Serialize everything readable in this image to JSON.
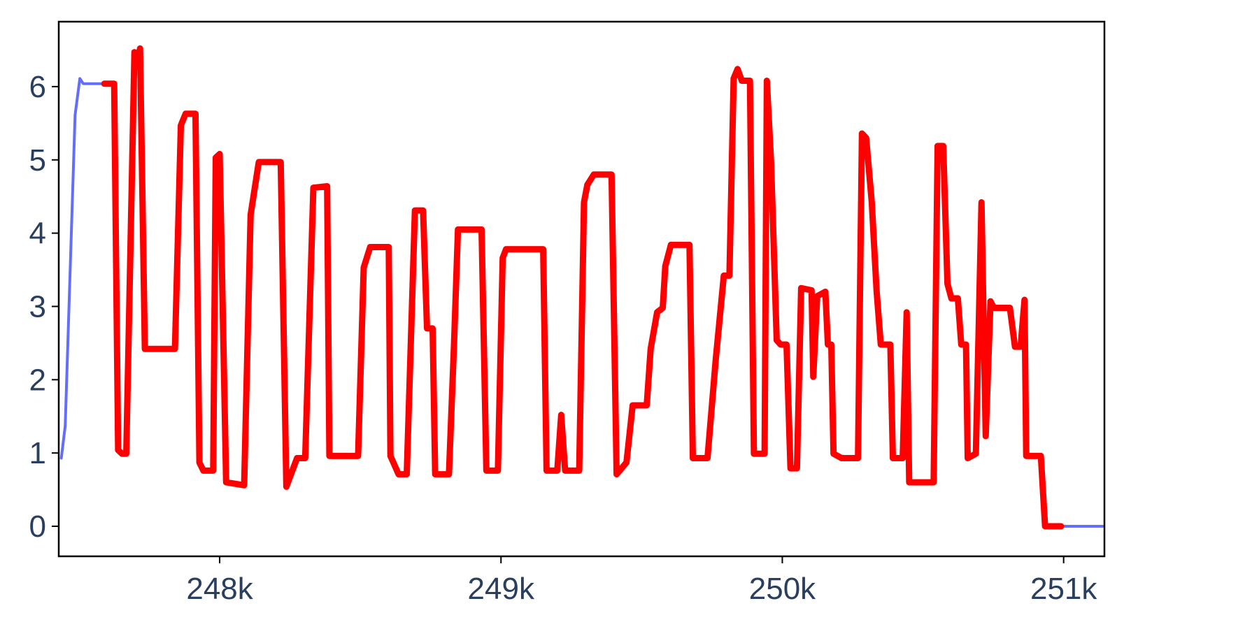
{
  "chart_data": {
    "type": "line",
    "xlim": [
      247428,
      251145
    ],
    "ylim": [
      -0.41,
      6.886
    ],
    "xticks": [
      {
        "value": 248000,
        "label": "248k"
      },
      {
        "value": 249000,
        "label": "249k"
      },
      {
        "value": 250000,
        "label": "250k"
      },
      {
        "value": 251000,
        "label": "251k"
      }
    ],
    "yticks": [
      0,
      1,
      2,
      3,
      4,
      5,
      6
    ],
    "grid": false,
    "series": [
      {
        "color": "#636efa",
        "width": 4,
        "x": [
          247437,
          247451,
          247486,
          247503,
          247515,
          247590,
          247625,
          247639,
          247653,
          247668,
          247697,
          247711,
          247717,
          247734,
          247841,
          247862,
          247879,
          247914,
          247928,
          247942,
          247977,
          247986,
          248000,
          248023,
          248087,
          248110,
          248139,
          248217,
          248237,
          248275,
          248304,
          248333,
          248382,
          248390,
          248492,
          248512,
          248535,
          248601,
          248607,
          248636,
          248665,
          248694,
          248723,
          248737,
          248757,
          248766,
          248815,
          248833,
          248847,
          248931,
          248948,
          248989,
          249006,
          249018,
          249150,
          249162,
          249200,
          249214,
          249228,
          249278,
          249295,
          249307,
          249330,
          249393,
          249411,
          249446,
          249468,
          249518,
          249532,
          249555,
          249575,
          249584,
          249604,
          249670,
          249682,
          249734,
          249763,
          249792,
          249812,
          249827,
          249841,
          249856,
          249885,
          249899,
          249937,
          249945,
          249960,
          249980,
          249994,
          250015,
          250029,
          250052,
          250067,
          250104,
          250110,
          250124,
          250153,
          250162,
          250174,
          250182,
          250211,
          250269,
          250283,
          250298,
          250318,
          250335,
          250350,
          250384,
          250393,
          250428,
          250442,
          250451,
          250538,
          250552,
          250572,
          250587,
          250601,
          250624,
          250636,
          250653,
          250659,
          250688,
          250708,
          250723,
          250740,
          250752,
          250809,
          250827,
          250847,
          250861,
          250867,
          250919,
          250934,
          250991,
          251145
        ],
        "values": [
          0.93,
          1.37,
          5.61,
          6.11,
          6.04,
          6.04,
          6.04,
          1.04,
          0.99,
          0.99,
          6.47,
          6.41,
          6.52,
          2.42,
          2.42,
          5.47,
          5.63,
          5.63,
          0.87,
          0.76,
          0.76,
          5.03,
          5.08,
          0.6,
          0.56,
          4.25,
          4.97,
          4.97,
          0.54,
          0.93,
          0.93,
          4.62,
          4.64,
          0.96,
          0.96,
          3.53,
          3.81,
          3.81,
          0.96,
          0.71,
          0.71,
          4.31,
          4.31,
          2.7,
          2.7,
          0.71,
          0.71,
          2.48,
          4.05,
          4.05,
          0.76,
          0.76,
          3.66,
          3.78,
          3.78,
          0.76,
          0.76,
          1.52,
          0.76,
          0.76,
          4.42,
          4.66,
          4.8,
          4.8,
          0.71,
          0.87,
          1.65,
          1.65,
          2.42,
          2.92,
          2.98,
          3.55,
          3.84,
          3.84,
          0.93,
          0.93,
          2.26,
          3.42,
          3.42,
          6.11,
          6.24,
          6.08,
          6.08,
          0.99,
          0.99,
          6.08,
          4.97,
          2.54,
          2.48,
          2.48,
          0.79,
          0.79,
          3.25,
          3.22,
          2.04,
          3.14,
          3.2,
          2.48,
          2.48,
          0.99,
          0.93,
          0.93,
          5.36,
          5.3,
          4.42,
          3.22,
          2.48,
          2.48,
          0.93,
          0.93,
          2.92,
          0.6,
          0.6,
          5.19,
          5.19,
          3.31,
          3.11,
          3.11,
          2.48,
          2.48,
          0.93,
          0.99,
          4.42,
          1.23,
          3.07,
          2.98,
          2.98,
          2.45,
          2.45,
          3.09,
          0.96,
          0.96,
          0,
          0,
          0
        ]
      },
      {
        "color": "#ff0000",
        "width": 9,
        "x": [
          247590,
          247625,
          247639,
          247653,
          247668,
          247697,
          247711,
          247717,
          247734,
          247841,
          247862,
          247879,
          247914,
          247928,
          247942,
          247977,
          247986,
          248000,
          248023,
          248087,
          248110,
          248139,
          248217,
          248237,
          248275,
          248304,
          248333,
          248382,
          248390,
          248492,
          248512,
          248535,
          248601,
          248607,
          248636,
          248665,
          248694,
          248723,
          248737,
          248757,
          248766,
          248815,
          248833,
          248847,
          248931,
          248948,
          248989,
          249006,
          249018,
          249150,
          249162,
          249200,
          249214,
          249228,
          249278,
          249295,
          249307,
          249330,
          249393,
          249411,
          249446,
          249468,
          249518,
          249532,
          249555,
          249575,
          249584,
          249604,
          249670,
          249682,
          249734,
          249763,
          249792,
          249812,
          249827,
          249841,
          249856,
          249885,
          249899,
          249937,
          249945,
          249960,
          249980,
          249994,
          250015,
          250029,
          250052,
          250067,
          250104,
          250110,
          250124,
          250153,
          250162,
          250174,
          250182,
          250211,
          250269,
          250283,
          250298,
          250318,
          250335,
          250350,
          250384,
          250393,
          250428,
          250442,
          250451,
          250538,
          250552,
          250572,
          250587,
          250601,
          250624,
          250636,
          250653,
          250659,
          250688,
          250708,
          250723,
          250740,
          250752,
          250809,
          250827,
          250847,
          250861,
          250867,
          250919,
          250934,
          250991
        ],
        "values": [
          6.04,
          6.04,
          1.04,
          0.99,
          0.99,
          6.47,
          6.41,
          6.52,
          2.42,
          2.42,
          5.47,
          5.63,
          5.63,
          0.87,
          0.76,
          0.76,
          5.03,
          5.08,
          0.6,
          0.56,
          4.25,
          4.97,
          4.97,
          0.54,
          0.93,
          0.93,
          4.62,
          4.64,
          0.96,
          0.96,
          3.53,
          3.81,
          3.81,
          0.96,
          0.71,
          0.71,
          4.31,
          4.31,
          2.7,
          2.7,
          0.71,
          0.71,
          2.48,
          4.05,
          4.05,
          0.76,
          0.76,
          3.66,
          3.78,
          3.78,
          0.76,
          0.76,
          1.52,
          0.76,
          0.76,
          4.42,
          4.66,
          4.8,
          4.8,
          0.71,
          0.87,
          1.65,
          1.65,
          2.42,
          2.92,
          2.98,
          3.55,
          3.84,
          3.84,
          0.93,
          0.93,
          2.26,
          3.42,
          3.42,
          6.11,
          6.24,
          6.08,
          6.08,
          0.99,
          0.99,
          6.08,
          4.97,
          2.54,
          2.48,
          2.48,
          0.79,
          0.79,
          3.25,
          3.22,
          2.04,
          3.14,
          3.2,
          2.48,
          2.48,
          0.99,
          0.93,
          0.93,
          5.36,
          5.3,
          4.42,
          3.22,
          2.48,
          2.48,
          0.93,
          0.93,
          2.92,
          0.6,
          0.6,
          5.19,
          5.19,
          3.31,
          3.11,
          3.11,
          2.48,
          2.48,
          0.93,
          0.99,
          4.42,
          1.23,
          3.07,
          2.98,
          2.98,
          2.45,
          2.45,
          3.09,
          0.96,
          0.96,
          0,
          0
        ]
      }
    ]
  }
}
